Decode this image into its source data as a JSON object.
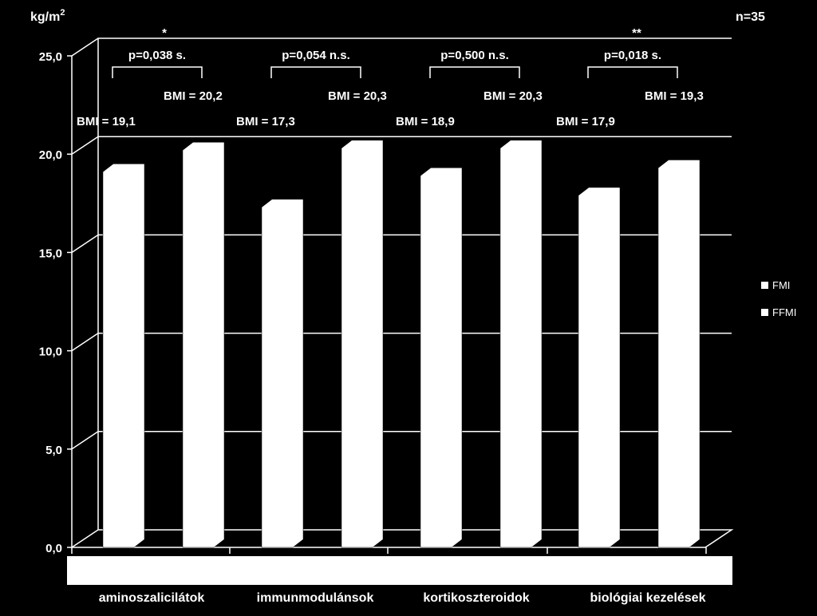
{
  "chart_data": {
    "type": "bar",
    "ylabel_base": "kg/m",
    "ylabel_sup": "2",
    "sample_note": "n=35",
    "ylim": [
      0,
      25
    ],
    "yticks": [
      "0,0",
      "5,0",
      "10,0",
      "15,0",
      "20,0",
      "25,0"
    ],
    "categories": [
      "aminoszalicilátok",
      "immunmodulánsok",
      "kortikoszteroidok",
      "biológiai kezelések"
    ],
    "series": [
      {
        "name": "FMI",
        "values": [
          19.1,
          17.3,
          18.9,
          17.9
        ]
      },
      {
        "name": "FFMI",
        "values": [
          20.2,
          20.3,
          20.3,
          19.3
        ]
      }
    ],
    "bar_labels": [
      [
        "BMI = 19,1",
        "BMI = 20,2"
      ],
      [
        "BMI = 17,3",
        "BMI = 20,3"
      ],
      [
        "BMI = 18,9",
        "BMI = 20,3"
      ],
      [
        "BMI = 17,9",
        "BMI = 19,3"
      ]
    ],
    "comparisons": [
      {
        "p": "p=0,038 s.",
        "stars": "*"
      },
      {
        "p": "p=0,054 n.s.",
        "stars": ""
      },
      {
        "p": "p=0,500 n.s.",
        "stars": ""
      },
      {
        "p": "p=0,018 s.",
        "stars": "**"
      }
    ],
    "grid": true,
    "legend_position": "right",
    "colors": {
      "background": "#000000",
      "bar": "#ffffff",
      "grid": "#ffffff",
      "text": "#ffffff"
    }
  }
}
